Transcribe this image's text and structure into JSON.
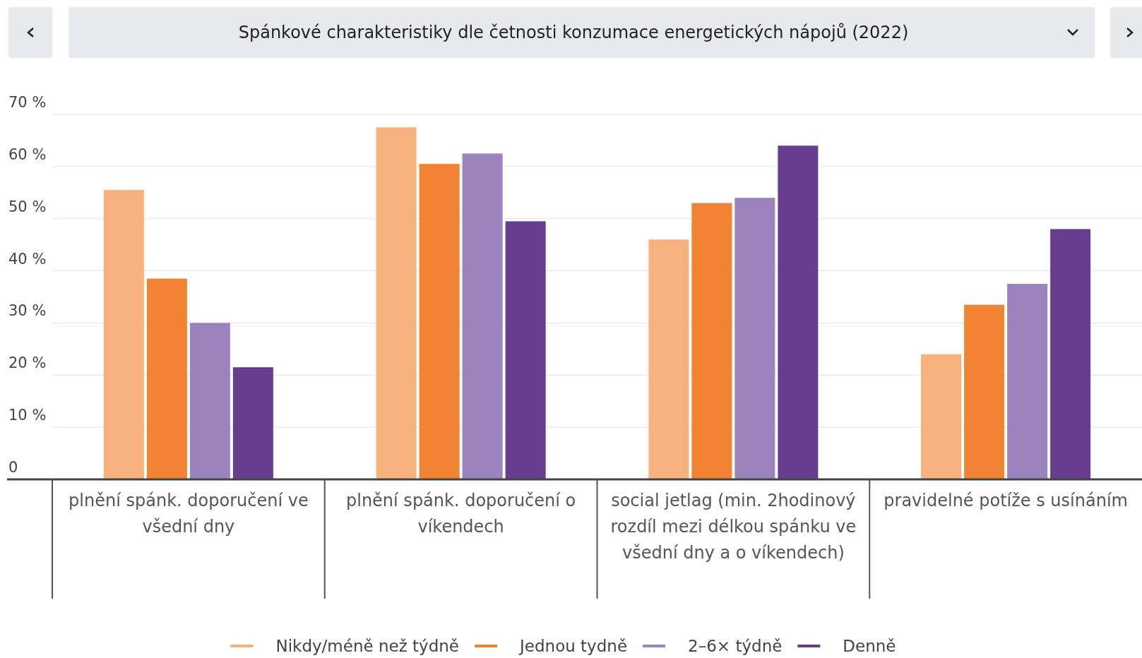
{
  "chart_data": {
    "type": "bar",
    "title": "Spánkové charakteristiky dle četnosti konzumace energetických nápojů (2022)",
    "categories": [
      "plnění spánk. doporučení ve všední dny",
      "plnění spánk. doporučení o víkendech",
      "social jetlag (min. 2hodinový rozdíl mezi délkou spánku ve všední dny a o víkendech)",
      "pravidelné potíže s usínáním"
    ],
    "series": [
      {
        "name": "Nikdy/méně než týdně",
        "color": "#f7b27e",
        "values": [
          55.5,
          67.5,
          46,
          24
        ]
      },
      {
        "name": "Jednou tydně",
        "color": "#f08433",
        "values": [
          38.5,
          60.5,
          53,
          33.5
        ]
      },
      {
        "name": "2–6× týdně",
        "color": "#9b84bd",
        "values": [
          30,
          62.5,
          54,
          37.5
        ]
      },
      {
        "name": "Denně",
        "color": "#673e8f",
        "values": [
          21.5,
          49.5,
          64,
          48
        ]
      }
    ],
    "ylim": [
      0,
      70
    ],
    "yticks": [
      {
        "value": 0,
        "label": "0"
      },
      {
        "value": 10,
        "label": "10 %"
      },
      {
        "value": 20,
        "label": "20 %"
      },
      {
        "value": 30,
        "label": "30 %"
      },
      {
        "value": 40,
        "label": "40 %"
      },
      {
        "value": 50,
        "label": "50 %"
      },
      {
        "value": 60,
        "label": "60 %"
      },
      {
        "value": 70,
        "label": "70 %"
      }
    ],
    "grid": "y",
    "legend": "bottom"
  }
}
